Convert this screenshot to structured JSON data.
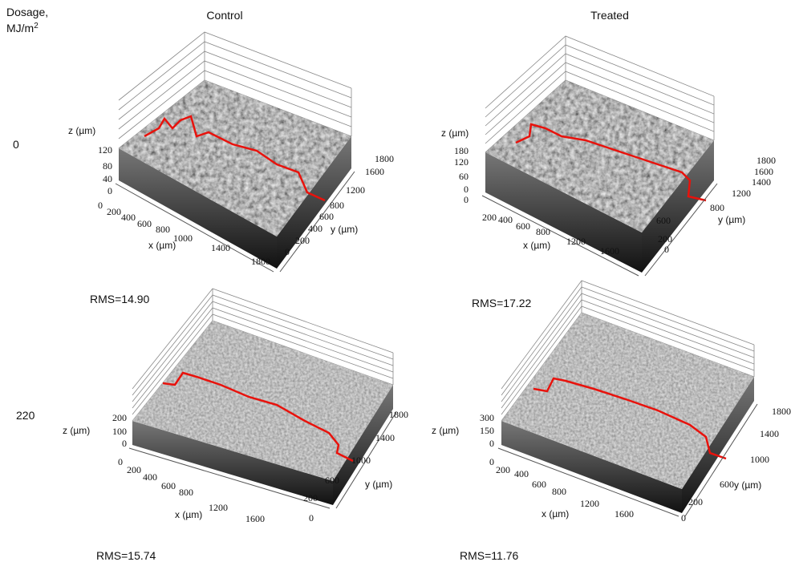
{
  "header": {
    "dosage_label": "Dosage,",
    "dosage_unit": "MJ/m",
    "dosage_unit_sup": "2",
    "columns": [
      "Control",
      "Treated"
    ]
  },
  "rows": [
    {
      "dosage": "0",
      "panels": [
        {
          "z_label": "z (µm)",
          "x_label": "x (µm)",
          "y_label": "y (µm)",
          "z_ticks": [
            "120",
            "80",
            "40",
            "0"
          ],
          "x_ticks": [
            "0",
            "200",
            "400",
            "600",
            "800",
            "1000",
            "1400",
            "1800"
          ],
          "y_ticks": [
            "0",
            "200",
            "400",
            "600",
            "800",
            "1200",
            "1600",
            "1800"
          ],
          "rms": "RMS=14.90"
        },
        {
          "z_label": "z (µm)",
          "x_label": "x (µm)",
          "y_label": "y (µm)",
          "z_ticks": [
            "180",
            "120",
            "60",
            "0",
            "0"
          ],
          "x_ticks": [
            "200",
            "400",
            "600",
            "800",
            "1200",
            "1600"
          ],
          "y_ticks": [
            "0",
            "200",
            "600",
            "800",
            "1200",
            "1400",
            "1600",
            "1800"
          ],
          "rms": "RMS=17.22"
        }
      ]
    },
    {
      "dosage": "220",
      "panels": [
        {
          "z_label": "z (µm)",
          "x_label": "x (µm)",
          "y_label": "y (µm)",
          "z_ticks": [
            "200",
            "100",
            "0"
          ],
          "x_ticks": [
            "0",
            "200",
            "400",
            "600",
            "800",
            "1200",
            "1600"
          ],
          "y_ticks": [
            "0",
            "200",
            "600",
            "1000",
            "1400",
            "1800"
          ],
          "rms": "RMS=15.74"
        },
        {
          "z_label": "z (µm)",
          "x_label": "x (µm)",
          "y_label": "y (µm)",
          "z_ticks": [
            "300",
            "150",
            "0"
          ],
          "x_ticks": [
            "0",
            "200",
            "400",
            "600",
            "800",
            "1200",
            "1600"
          ],
          "y_ticks": [
            "0",
            "200",
            "600",
            "1000",
            "1400",
            "1800"
          ],
          "rms": "RMS=11.76"
        }
      ]
    }
  ]
}
